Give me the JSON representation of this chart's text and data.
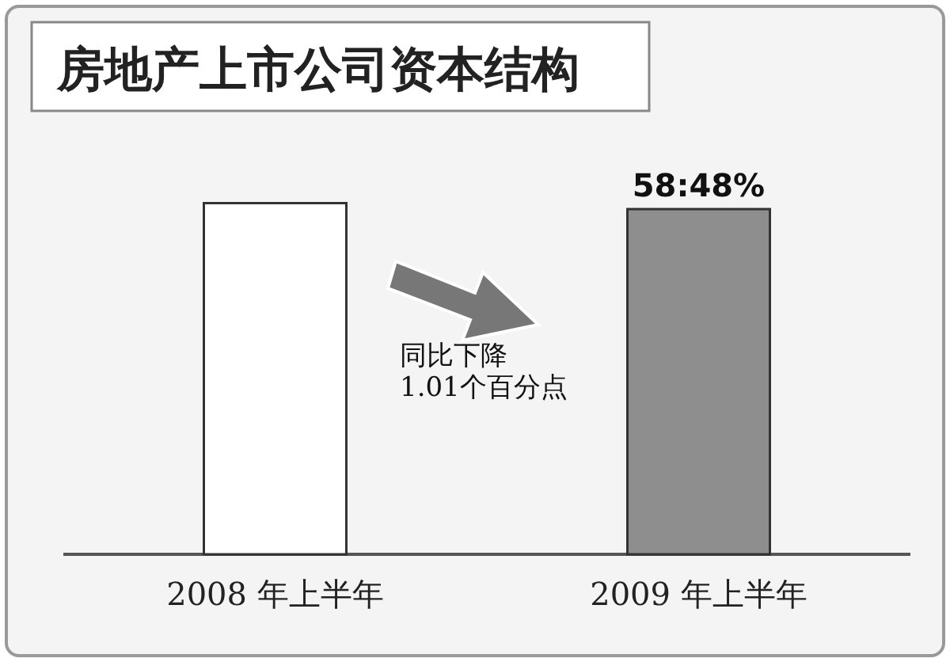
{
  "chart_data": {
    "type": "bar",
    "title": "房地产上市公司资本结构",
    "categories": [
      "2008 年上半年",
      "2009 年上半年"
    ],
    "values": [
      59.49,
      58.48
    ],
    "colors": [
      "#ffffff",
      "#8e8e8e"
    ],
    "value_labels": [
      null,
      "58:48%"
    ],
    "annotations": [
      "同比下降\n1.01个百分点"
    ]
  }
}
